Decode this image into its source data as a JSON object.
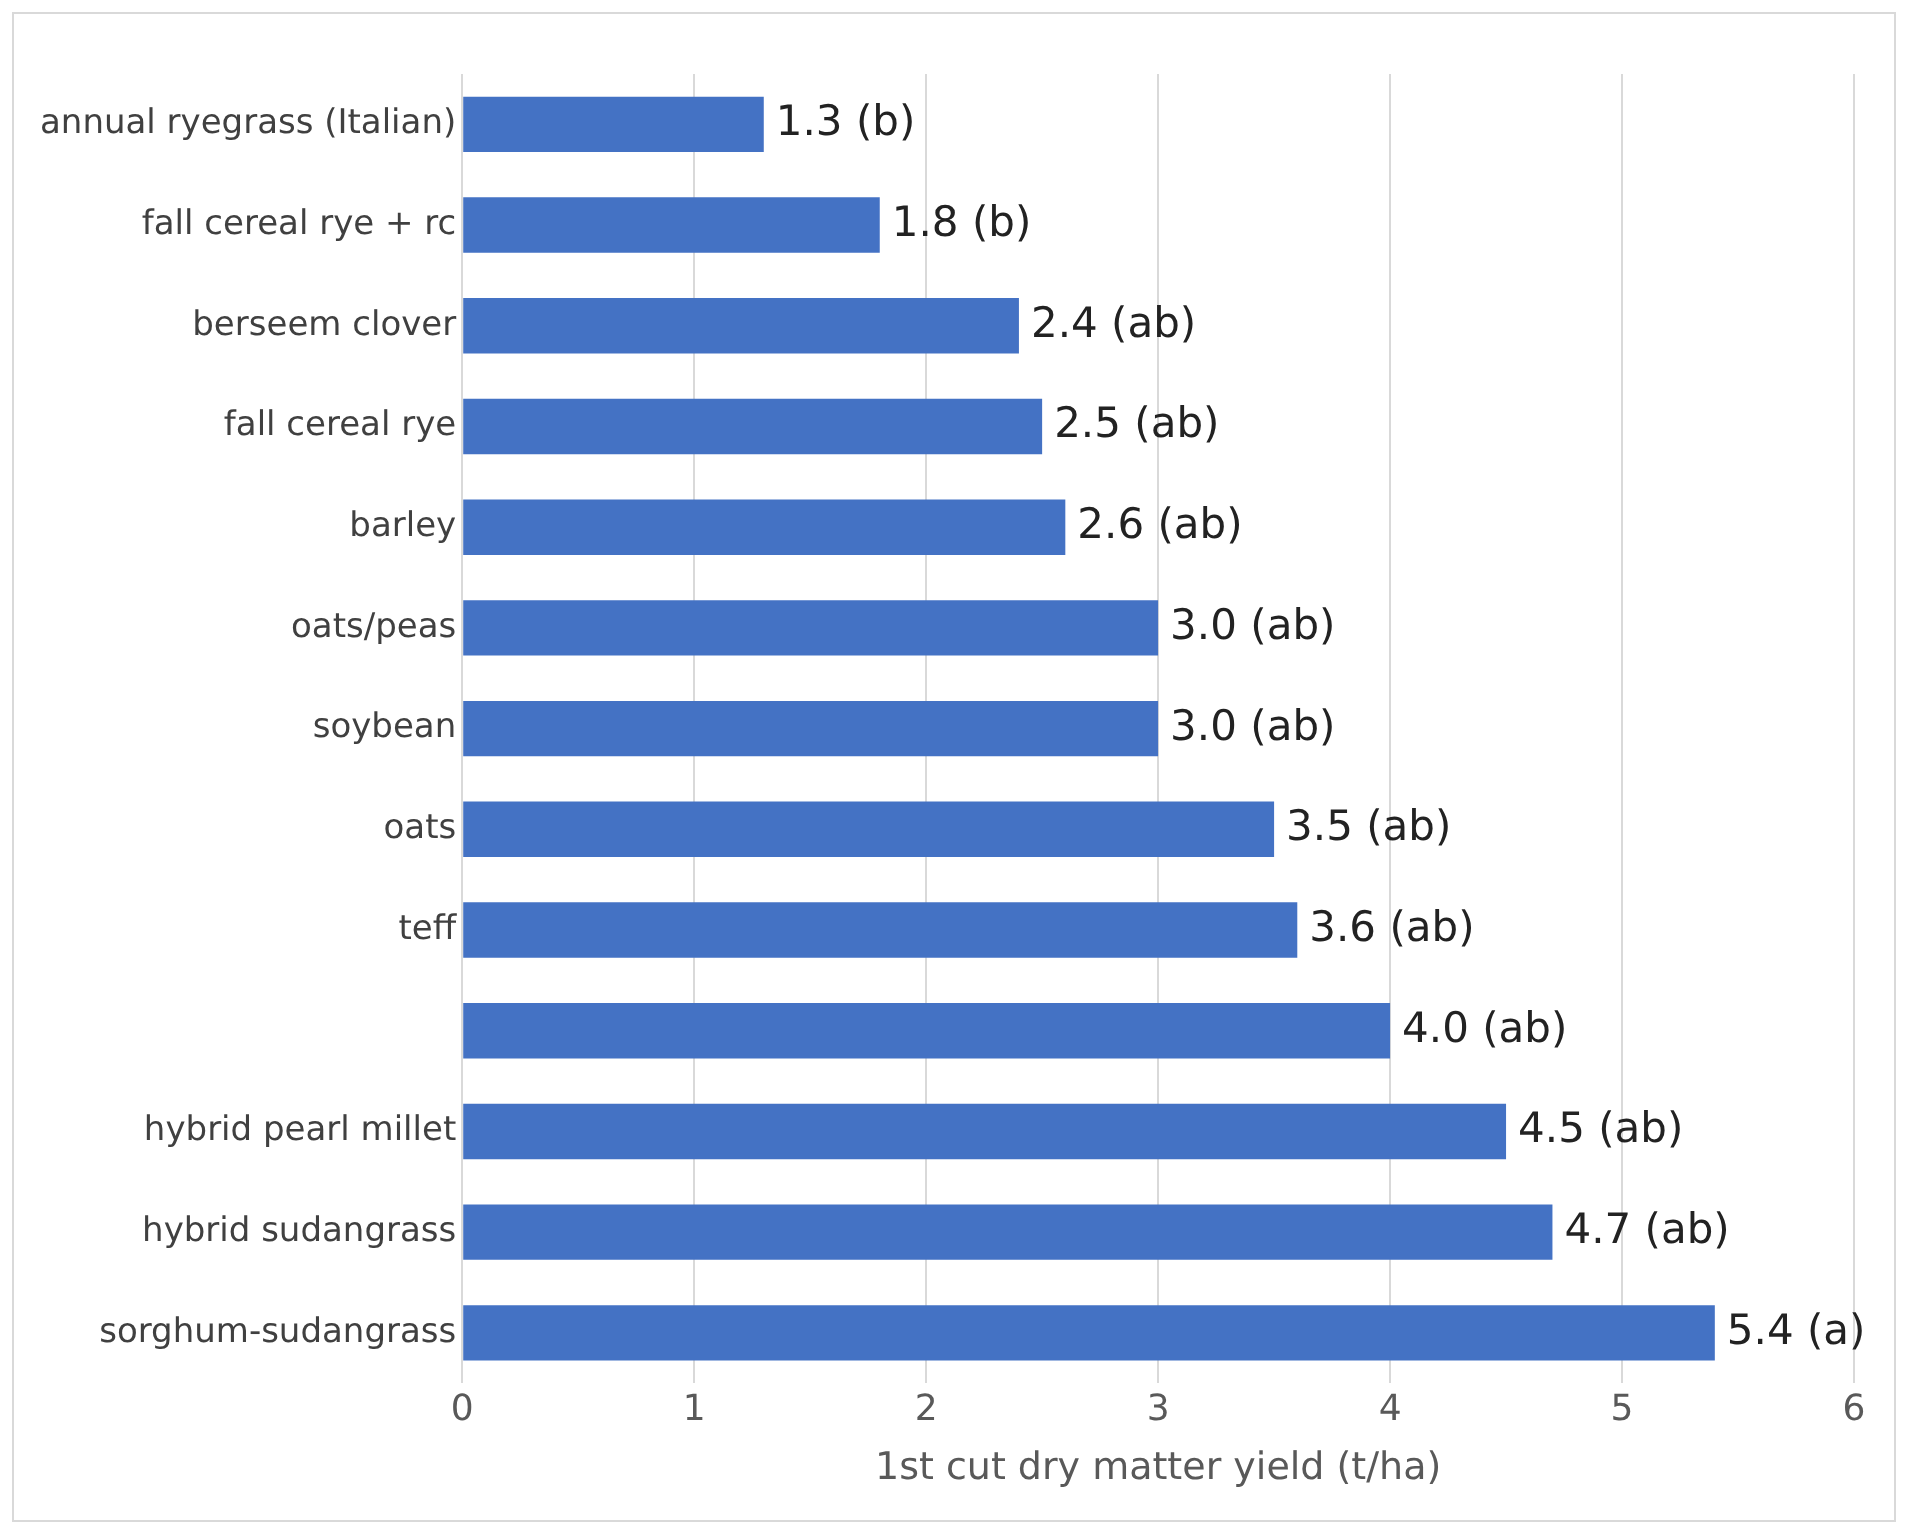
{
  "chart_data": {
    "type": "bar",
    "orientation": "horizontal",
    "xlabel": "1st cut dry matter yield (t/ha)",
    "categories": [
      "annual ryegrass (Italian)",
      "fall cereal rye + rc",
      "berseem clover",
      "fall cereal rye",
      "barley",
      "oats/peas",
      "soybean",
      "oats",
      "teff",
      null,
      "hybrid pearl millet",
      "hybrid sudangrass",
      "sorghum-sudangrass"
    ],
    "values": [
      1.3,
      1.8,
      2.4,
      2.5,
      2.6,
      3.0,
      3.0,
      3.5,
      3.6,
      4.0,
      4.5,
      4.7,
      5.4
    ],
    "value_labels": [
      "1.3 (b)",
      "1.8 (b)",
      "2.4 (ab)",
      "2.5 (ab)",
      "2.6 (ab)",
      "3.0 (ab)",
      "3.0 (ab)",
      "3.5 (ab)",
      "3.6 (ab)",
      "4.0 (ab)",
      "4.5 (ab)",
      "4.7 (ab)",
      "5.4 (a)"
    ],
    "color": "#4472c4",
    "xlim": [
      0,
      6
    ],
    "xticks": [
      0,
      1,
      2,
      3,
      4,
      5,
      6
    ],
    "grid": "x",
    "legend": false
  }
}
